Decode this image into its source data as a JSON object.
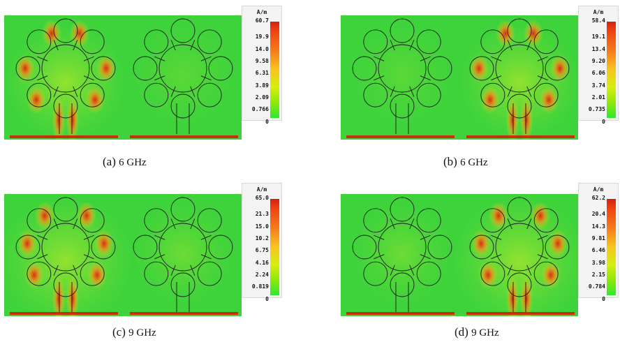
{
  "unit_label": "A/m",
  "panels": [
    {
      "id": "a",
      "label": "(a)",
      "frequency": "6 GHz",
      "active_port": "left",
      "scale": [
        "60.7",
        "19.9",
        "14.0",
        "9.58",
        "6.31",
        "3.89",
        "2.09",
        "0.766",
        "0"
      ]
    },
    {
      "id": "b",
      "label": "(b)",
      "frequency": "6 GHz",
      "active_port": "right",
      "scale": [
        "58.4",
        "19.1",
        "13.4",
        "9.20",
        "6.06",
        "3.74",
        "2.01",
        "0.735",
        "0"
      ]
    },
    {
      "id": "c",
      "label": "(c)",
      "frequency": "9 GHz",
      "active_port": "left",
      "scale": [
        "65.0",
        "21.3",
        "15.0",
        "10.2",
        "6.75",
        "4.16",
        "2.24",
        "0.819",
        "0"
      ]
    },
    {
      "id": "d",
      "label": "(d)",
      "frequency": "9 GHz",
      "active_port": "right",
      "scale": [
        "62.2",
        "20.4",
        "14.3",
        "9.81",
        "6.46",
        "3.98",
        "2.15",
        "0.784",
        "0"
      ]
    }
  ],
  "colors": {
    "background_field": "#3fd33b",
    "hot": "#e0200f",
    "warm": "#f5a21b",
    "ground": "#c8300c",
    "outline": "#1a1a1a"
  }
}
